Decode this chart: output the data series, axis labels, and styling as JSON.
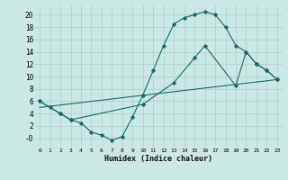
{
  "xlabel": "Humidex (Indice chaleur)",
  "bg_color": "#cce8e4",
  "line_color": "#1a6b64",
  "grid_color": "#aed4cf",
  "xlim": [
    -0.5,
    23.5
  ],
  "ylim": [
    -1.5,
    21.5
  ],
  "xticks": [
    0,
    1,
    2,
    3,
    4,
    5,
    6,
    7,
    8,
    9,
    10,
    11,
    12,
    13,
    14,
    15,
    16,
    17,
    18,
    19,
    20,
    21,
    22,
    23
  ],
  "yticks": [
    0,
    2,
    4,
    6,
    8,
    10,
    12,
    14,
    16,
    18,
    20
  ],
  "ytick_labels": [
    "-0",
    "2",
    "4",
    "6",
    "8",
    "10",
    "12",
    "14",
    "16",
    "18",
    "20"
  ],
  "curve1_x": [
    0,
    1,
    2,
    3,
    4,
    5,
    6,
    7,
    8,
    9,
    10,
    11,
    12,
    13,
    14,
    15,
    16,
    17,
    18,
    19,
    20,
    21,
    22,
    23
  ],
  "curve1_y": [
    6,
    5,
    4,
    3,
    2.5,
    1.0,
    0.5,
    -0.3,
    0.3,
    3.5,
    7.0,
    11.0,
    15.0,
    18.5,
    19.5,
    20.0,
    20.5,
    20.0,
    18.0,
    15.0,
    14.0,
    12.0,
    11.0,
    9.5
  ],
  "curve2_x": [
    0,
    2,
    3,
    10,
    13,
    15,
    16,
    19,
    20,
    21,
    22,
    23
  ],
  "curve2_y": [
    6,
    4,
    3,
    5.5,
    9.0,
    13.0,
    15.0,
    8.5,
    14.0,
    12.0,
    11.0,
    9.5
  ],
  "curve3_x": [
    0,
    23
  ],
  "curve3_y": [
    5.0,
    9.5
  ]
}
